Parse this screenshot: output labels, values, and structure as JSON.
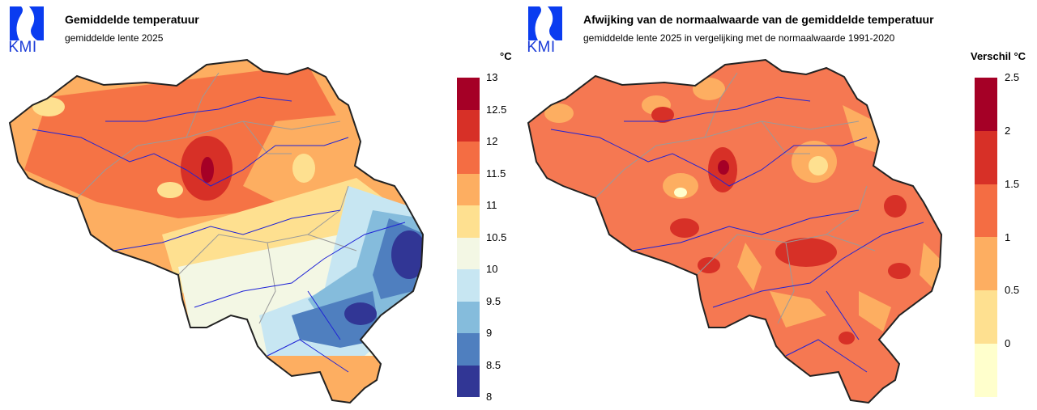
{
  "logo": {
    "text": "KMI"
  },
  "left": {
    "title": "Gemiddelde temperatuur",
    "subtitle": "gemiddelde lente 2025",
    "unit": "°C",
    "legend": {
      "ticks": [
        "13",
        "12.5",
        "12",
        "11.5",
        "11",
        "10.5",
        "10",
        "9.5",
        "9",
        "8.5",
        "8"
      ],
      "colors": [
        "#a50026",
        "#d73027",
        "#f46d43",
        "#fdae61",
        "#fee090",
        "#f3f7e4",
        "#c7e6f2",
        "#85bcdc",
        "#4f7fbf",
        "#313695"
      ]
    }
  },
  "right": {
    "title": "Afwijking van de normaalwaarde van de gemiddelde temperatuur",
    "subtitle": "gemiddelde lente 2025 in vergelijking met de normaalwaarde 1991-2020",
    "unit": "Verschil °C",
    "legend": {
      "ticks": [
        "2.5",
        "2",
        "1.5",
        "1",
        "0.5",
        "0"
      ],
      "colors": [
        "#a50026",
        "#d73027",
        "#f46d43",
        "#fdae61",
        "#fee090",
        "#ffffcc"
      ]
    }
  },
  "colors": {
    "kmi_blue": "#0a3cf0",
    "border": "#222222",
    "river": "#1f23d6",
    "province": "#9a9a9a"
  }
}
